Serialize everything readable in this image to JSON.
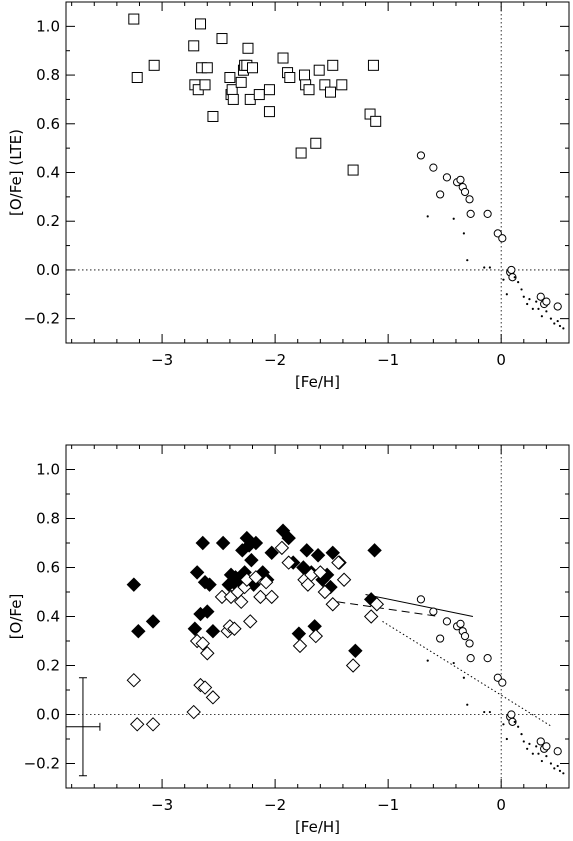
{
  "chart_data": [
    {
      "type": "scatter",
      "title": "",
      "xlabel": "[Fe/H]",
      "ylabel": "[O/Fe] (LTE)",
      "xlim": [
        -3.85,
        0.6
      ],
      "ylim": [
        -0.3,
        1.1
      ],
      "xticks": [
        -3,
        -2,
        -1,
        0
      ],
      "xtick_labels": [
        "−3",
        "−2",
        "−1",
        "0"
      ],
      "yticks": [
        -0.2,
        0.0,
        0.2,
        0.4,
        0.6,
        0.8,
        1.0
      ],
      "ytick_labels": [
        "−0.2",
        "0.0",
        "0.2",
        "0.4",
        "0.6",
        "0.8",
        "1.0"
      ],
      "reference_lines": {
        "x": 0,
        "y": 0,
        "style": "dotted"
      },
      "grid": false,
      "series": [
        {
          "marker": "open-square",
          "points": [
            [
              -3.25,
              1.03
            ],
            [
              -3.22,
              0.79
            ],
            [
              -3.07,
              0.84
            ],
            [
              -2.72,
              0.92
            ],
            [
              -2.71,
              0.76
            ],
            [
              -2.68,
              0.74
            ],
            [
              -2.66,
              1.01
            ],
            [
              -2.65,
              0.83
            ],
            [
              -2.62,
              0.76
            ],
            [
              -2.6,
              0.83
            ],
            [
              -2.55,
              0.63
            ],
            [
              -2.47,
              0.95
            ],
            [
              -2.4,
              0.79
            ],
            [
              -2.39,
              0.72
            ],
            [
              -2.38,
              0.74
            ],
            [
              -2.37,
              0.7
            ],
            [
              -2.3,
              0.77
            ],
            [
              -2.28,
              0.82
            ],
            [
              -2.27,
              0.84
            ],
            [
              -2.25,
              0.84
            ],
            [
              -2.24,
              0.91
            ],
            [
              -2.22,
              0.7
            ],
            [
              -2.2,
              0.83
            ],
            [
              -2.14,
              0.72
            ],
            [
              -2.05,
              0.74
            ],
            [
              -2.05,
              0.65
            ],
            [
              -1.93,
              0.87
            ],
            [
              -1.89,
              0.81
            ],
            [
              -1.87,
              0.79
            ],
            [
              -1.77,
              0.48
            ],
            [
              -1.74,
              0.8
            ],
            [
              -1.73,
              0.76
            ],
            [
              -1.7,
              0.74
            ],
            [
              -1.64,
              0.52
            ],
            [
              -1.61,
              0.82
            ],
            [
              -1.56,
              0.76
            ],
            [
              -1.51,
              0.73
            ],
            [
              -1.49,
              0.84
            ],
            [
              -1.41,
              0.76
            ],
            [
              -1.31,
              0.41
            ],
            [
              -1.16,
              0.64
            ],
            [
              -1.13,
              0.84
            ],
            [
              -1.11,
              0.61
            ]
          ]
        },
        {
          "marker": "open-circle",
          "points": [
            [
              -0.71,
              0.47
            ],
            [
              -0.6,
              0.42
            ],
            [
              -0.54,
              0.31
            ],
            [
              -0.48,
              0.38
            ],
            [
              -0.39,
              0.36
            ],
            [
              -0.36,
              0.37
            ],
            [
              -0.34,
              0.34
            ],
            [
              -0.32,
              0.32
            ],
            [
              -0.28,
              0.29
            ],
            [
              -0.27,
              0.23
            ],
            [
              -0.12,
              0.23
            ],
            [
              -0.03,
              0.15
            ],
            [
              0.01,
              0.13
            ],
            [
              0.08,
              -0.01
            ],
            [
              0.09,
              0.0
            ],
            [
              0.1,
              -0.03
            ],
            [
              0.35,
              -0.11
            ],
            [
              0.38,
              -0.14
            ],
            [
              0.4,
              -0.13
            ],
            [
              0.5,
              -0.15
            ]
          ]
        },
        {
          "marker": "small-dot",
          "points": [
            [
              -0.65,
              0.22
            ],
            [
              -0.42,
              0.21
            ],
            [
              -0.33,
              0.15
            ],
            [
              -0.3,
              0.04
            ],
            [
              -0.15,
              0.01
            ],
            [
              -0.1,
              0.01
            ],
            [
              0.02,
              -0.04
            ],
            [
              0.05,
              -0.1
            ],
            [
              0.12,
              -0.03
            ],
            [
              0.15,
              -0.05
            ],
            [
              0.18,
              -0.08
            ],
            [
              0.2,
              -0.11
            ],
            [
              0.23,
              -0.14
            ],
            [
              0.25,
              -0.12
            ],
            [
              0.28,
              -0.16
            ],
            [
              0.31,
              -0.13
            ],
            [
              0.33,
              -0.16
            ],
            [
              0.36,
              -0.19
            ],
            [
              0.4,
              -0.17
            ],
            [
              0.44,
              -0.2
            ],
            [
              0.47,
              -0.22
            ],
            [
              0.5,
              -0.21
            ],
            [
              0.52,
              -0.23
            ],
            [
              0.55,
              -0.24
            ]
          ]
        }
      ]
    },
    {
      "type": "scatter",
      "title": "",
      "xlabel": "[Fe/H]",
      "ylabel": "[O/Fe]",
      "xlim": [
        -3.85,
        0.6
      ],
      "ylim": [
        -0.3,
        1.1
      ],
      "xticks": [
        -3,
        -2,
        -1,
        0
      ],
      "xtick_labels": [
        "−3",
        "−2",
        "−1",
        "0"
      ],
      "yticks": [
        -0.2,
        0.0,
        0.2,
        0.4,
        0.6,
        0.8,
        1.0
      ],
      "ytick_labels": [
        "−0.2",
        "0.0",
        "0.2",
        "0.4",
        "0.6",
        "0.8",
        "1.0"
      ],
      "reference_lines": {
        "x": 0,
        "y": 0,
        "style": "dotted"
      },
      "grid": false,
      "error_bar": {
        "x": -3.7,
        "y": -0.05,
        "xerr": 0.15,
        "yerr": 0.2
      },
      "trend_lines": [
        {
          "style": "solid",
          "points": [
            [
              -1.2,
              0.49
            ],
            [
              -0.25,
              0.4
            ]
          ]
        },
        {
          "style": "dashed",
          "points": [
            [
              -1.45,
              0.46
            ],
            [
              -0.55,
              0.4
            ]
          ]
        },
        {
          "style": "dotted",
          "points": [
            [
              -1.05,
              0.38
            ],
            [
              0.45,
              -0.05
            ]
          ]
        }
      ],
      "series": [
        {
          "marker": "filled-diamond",
          "points": [
            [
              -3.25,
              0.53
            ],
            [
              -3.21,
              0.34
            ],
            [
              -3.08,
              0.38
            ],
            [
              -2.71,
              0.35
            ],
            [
              -2.69,
              0.58
            ],
            [
              -2.66,
              0.41
            ],
            [
              -2.64,
              0.7
            ],
            [
              -2.62,
              0.54
            ],
            [
              -2.6,
              0.42
            ],
            [
              -2.58,
              0.53
            ],
            [
              -2.55,
              0.34
            ],
            [
              -2.46,
              0.7
            ],
            [
              -2.41,
              0.53
            ],
            [
              -2.39,
              0.57
            ],
            [
              -2.37,
              0.54
            ],
            [
              -2.35,
              0.56
            ],
            [
              -2.33,
              0.55
            ],
            [
              -2.31,
              0.52
            ],
            [
              -2.29,
              0.67
            ],
            [
              -2.27,
              0.58
            ],
            [
              -2.25,
              0.72
            ],
            [
              -2.23,
              0.69
            ],
            [
              -2.21,
              0.63
            ],
            [
              -2.19,
              0.53
            ],
            [
              -2.17,
              0.7
            ],
            [
              -2.11,
              0.58
            ],
            [
              -2.07,
              0.55
            ],
            [
              -2.03,
              0.66
            ],
            [
              -1.93,
              0.75
            ],
            [
              -1.88,
              0.72
            ],
            [
              -1.84,
              0.62
            ],
            [
              -1.79,
              0.33
            ],
            [
              -1.75,
              0.6
            ],
            [
              -1.72,
              0.67
            ],
            [
              -1.68,
              0.58
            ],
            [
              -1.65,
              0.36
            ],
            [
              -1.62,
              0.65
            ],
            [
              -1.58,
              0.55
            ],
            [
              -1.54,
              0.57
            ],
            [
              -1.51,
              0.52
            ],
            [
              -1.49,
              0.66
            ],
            [
              -1.43,
              0.62
            ],
            [
              -1.29,
              0.26
            ],
            [
              -1.15,
              0.47
            ],
            [
              -1.12,
              0.67
            ]
          ]
        },
        {
          "marker": "open-diamond",
          "points": [
            [
              -3.25,
              0.14
            ],
            [
              -3.22,
              -0.04
            ],
            [
              -3.08,
              -0.04
            ],
            [
              -2.72,
              0.01
            ],
            [
              -2.69,
              0.3
            ],
            [
              -2.66,
              0.12
            ],
            [
              -2.64,
              0.29
            ],
            [
              -2.62,
              0.11
            ],
            [
              -2.6,
              0.25
            ],
            [
              -2.55,
              0.07
            ],
            [
              -2.47,
              0.48
            ],
            [
              -2.42,
              0.34
            ],
            [
              -2.4,
              0.36
            ],
            [
              -2.39,
              0.48
            ],
            [
              -2.36,
              0.35
            ],
            [
              -2.33,
              0.5
            ],
            [
              -2.3,
              0.46
            ],
            [
              -2.27,
              0.52
            ],
            [
              -2.25,
              0.55
            ],
            [
              -2.22,
              0.38
            ],
            [
              -2.17,
              0.56
            ],
            [
              -2.13,
              0.48
            ],
            [
              -2.08,
              0.54
            ],
            [
              -2.03,
              0.48
            ],
            [
              -1.94,
              0.68
            ],
            [
              -1.88,
              0.62
            ],
            [
              -1.78,
              0.28
            ],
            [
              -1.74,
              0.55
            ],
            [
              -1.71,
              0.53
            ],
            [
              -1.68,
              0.57
            ],
            [
              -1.64,
              0.32
            ],
            [
              -1.6,
              0.58
            ],
            [
              -1.56,
              0.5
            ],
            [
              -1.49,
              0.45
            ],
            [
              -1.44,
              0.62
            ],
            [
              -1.39,
              0.55
            ],
            [
              -1.31,
              0.2
            ],
            [
              -1.15,
              0.4
            ],
            [
              -1.1,
              0.45
            ]
          ]
        },
        {
          "marker": "open-circle",
          "points": [
            [
              -0.71,
              0.47
            ],
            [
              -0.6,
              0.42
            ],
            [
              -0.54,
              0.31
            ],
            [
              -0.48,
              0.38
            ],
            [
              -0.39,
              0.36
            ],
            [
              -0.36,
              0.37
            ],
            [
              -0.34,
              0.34
            ],
            [
              -0.32,
              0.32
            ],
            [
              -0.28,
              0.29
            ],
            [
              -0.27,
              0.23
            ],
            [
              -0.12,
              0.23
            ],
            [
              -0.03,
              0.15
            ],
            [
              0.01,
              0.13
            ],
            [
              0.08,
              -0.01
            ],
            [
              0.09,
              0.0
            ],
            [
              0.1,
              -0.03
            ],
            [
              0.35,
              -0.11
            ],
            [
              0.38,
              -0.14
            ],
            [
              0.4,
              -0.13
            ],
            [
              0.5,
              -0.15
            ]
          ]
        },
        {
          "marker": "small-dot",
          "points": [
            [
              -0.65,
              0.22
            ],
            [
              -0.42,
              0.21
            ],
            [
              -0.33,
              0.15
            ],
            [
              -0.3,
              0.04
            ],
            [
              -0.15,
              0.01
            ],
            [
              -0.1,
              0.01
            ],
            [
              0.02,
              -0.04
            ],
            [
              0.05,
              -0.1
            ],
            [
              0.12,
              -0.03
            ],
            [
              0.15,
              -0.05
            ],
            [
              0.18,
              -0.08
            ],
            [
              0.2,
              -0.11
            ],
            [
              0.23,
              -0.14
            ],
            [
              0.25,
              -0.12
            ],
            [
              0.28,
              -0.16
            ],
            [
              0.31,
              -0.13
            ],
            [
              0.33,
              -0.16
            ],
            [
              0.36,
              -0.19
            ],
            [
              0.4,
              -0.17
            ],
            [
              0.44,
              -0.2
            ],
            [
              0.47,
              -0.22
            ],
            [
              0.5,
              -0.21
            ],
            [
              0.52,
              -0.23
            ],
            [
              0.55,
              -0.24
            ]
          ]
        }
      ]
    }
  ]
}
